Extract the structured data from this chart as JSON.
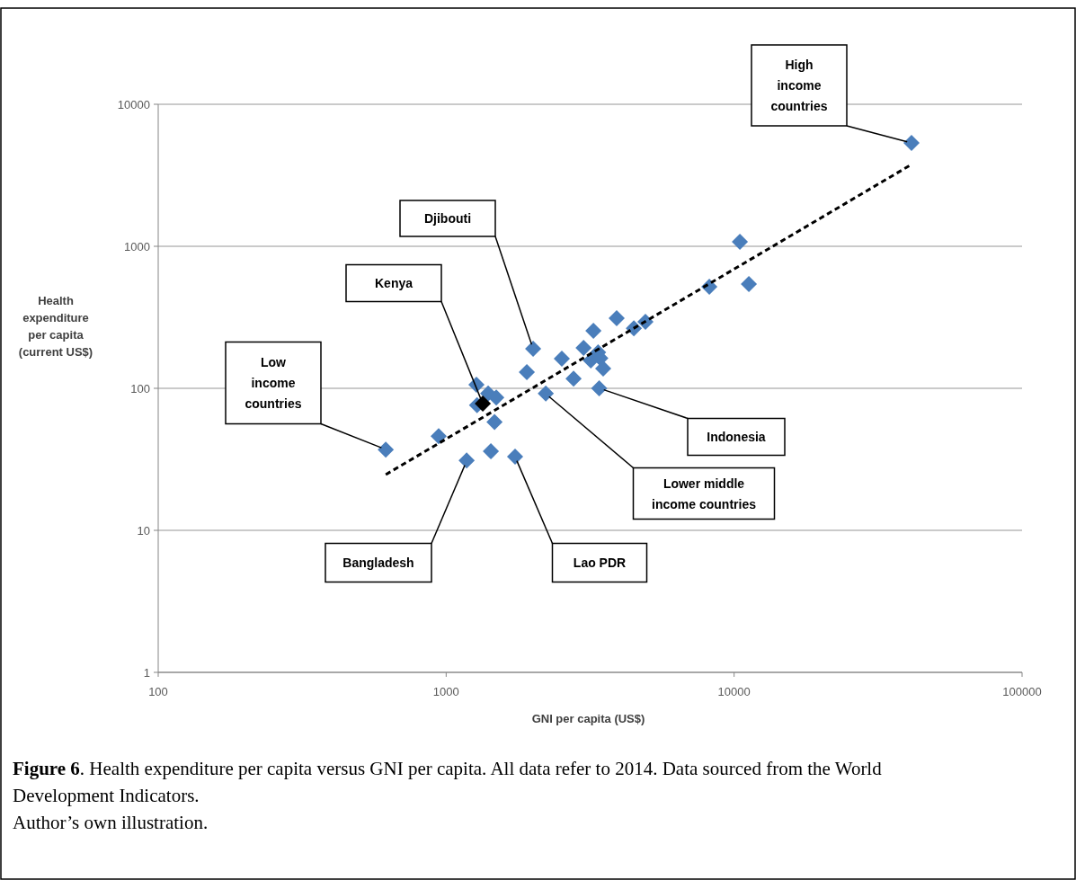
{
  "chart_data": {
    "type": "scatter",
    "xlabel": "GNI per capita (US$)",
    "ylabel": "Health expenditure per capita (current US$)",
    "log": "xy",
    "xlim": [
      100,
      100000
    ],
    "xticks": [
      100,
      1000,
      10000,
      100000
    ],
    "ylim": [
      1,
      10000
    ],
    "yticks": [
      1,
      10,
      100,
      1000,
      10000
    ],
    "grid": "y",
    "marker": "diamond",
    "series": [
      {
        "color": "#4a7ebb",
        "x": [
          617,
          942,
          1178,
          1430,
          1735,
          1472,
          1280,
          1274,
          1399,
          1493,
          1906,
          2004,
          2218,
          2522,
          2770,
          3000,
          3246,
          3180,
          3370,
          3510,
          3430,
          3400,
          3910,
          4485,
          4920,
          8200,
          10470,
          11250,
          41300
        ],
        "values": [
          37,
          46,
          31,
          36,
          33,
          58,
          76,
          106,
          92,
          86,
          130,
          190,
          92,
          162,
          117,
          193,
          254,
          157,
          179,
          138,
          163,
          100,
          312,
          265,
          294,
          519,
          1076,
          542,
          5346
        ]
      },
      {
        "color": "#000000",
        "x": [
          1340
        ],
        "values": [
          78
        ]
      },
      {
        "type": "line",
        "color": "#000000",
        "line_style": "dashed",
        "marker": "none",
        "x": [
          617,
          41300
        ],
        "values": [
          24.7,
          3767
        ]
      }
    ],
    "annotations": [
      "High income countries",
      "Djibouti",
      "Kenya",
      "Low income countries",
      "Indonesia",
      "Lower middle income countries",
      "Bangladesh",
      "Lao PDR",
      "Figure 6. Health expenditure per capita versus GNI per capita. All data refer to 2014. Data sourced from the World Development Indicators.",
      "Author’s own illustration."
    ]
  }
}
